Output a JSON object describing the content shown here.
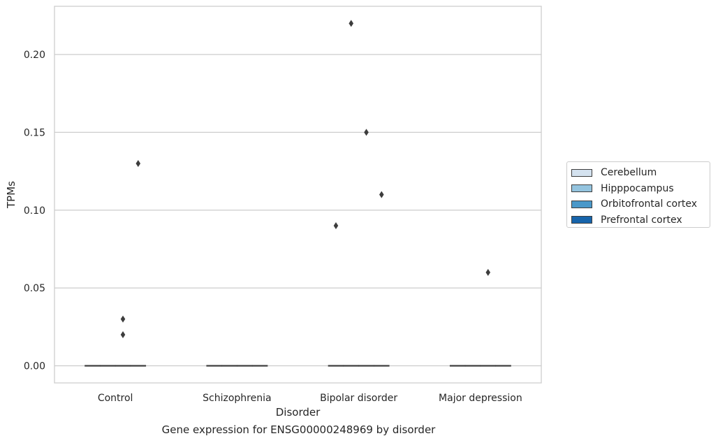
{
  "chart_data": {
    "type": "box",
    "caption": "Gene expression for ENSG00000248969 by disorder",
    "xlabel": "Disorder",
    "ylabel": "TPMs",
    "categories": [
      "Control",
      "Schizophrenia",
      "Bipolar disorder",
      "Major depression"
    ],
    "ylim": [
      -0.011,
      0.231
    ],
    "yticks": [
      0.0,
      0.05,
      0.1,
      0.15,
      0.2
    ],
    "ytick_labels": [
      "0.00",
      "0.05",
      "0.10",
      "0.15",
      "0.20"
    ],
    "grid": true,
    "legend_position": "right",
    "series": [
      {
        "name": "Cerebellum",
        "color": "#d4e2ef"
      },
      {
        "name": "Hipppocampus",
        "color": "#94c4df"
      },
      {
        "name": "Orbitofrontal cortex",
        "color": "#4a98c9"
      },
      {
        "name": "Prefrontal cortex",
        "color": "#1764ab"
      }
    ],
    "boxes": [
      {
        "category": "Control",
        "median": 0.0
      },
      {
        "category": "Schizophrenia",
        "median": 0.0
      },
      {
        "category": "Bipolar disorder",
        "median": 0.0
      },
      {
        "category": "Major depression",
        "median": 0.0
      }
    ],
    "outliers": [
      {
        "category": "Control",
        "series": "Orbitofrontal cortex",
        "y": 0.03
      },
      {
        "category": "Control",
        "series": "Orbitofrontal cortex",
        "y": 0.02
      },
      {
        "category": "Control",
        "series": "Prefrontal cortex",
        "y": 0.13
      },
      {
        "category": "Bipolar disorder",
        "series": "Cerebellum",
        "y": 0.09
      },
      {
        "category": "Bipolar disorder",
        "series": "Hipppocampus",
        "y": 0.22
      },
      {
        "category": "Bipolar disorder",
        "series": "Orbitofrontal cortex",
        "y": 0.15
      },
      {
        "category": "Bipolar disorder",
        "series": "Prefrontal cortex",
        "y": 0.11
      },
      {
        "category": "Major depression",
        "series": "Orbitofrontal cortex",
        "y": 0.06
      }
    ]
  }
}
